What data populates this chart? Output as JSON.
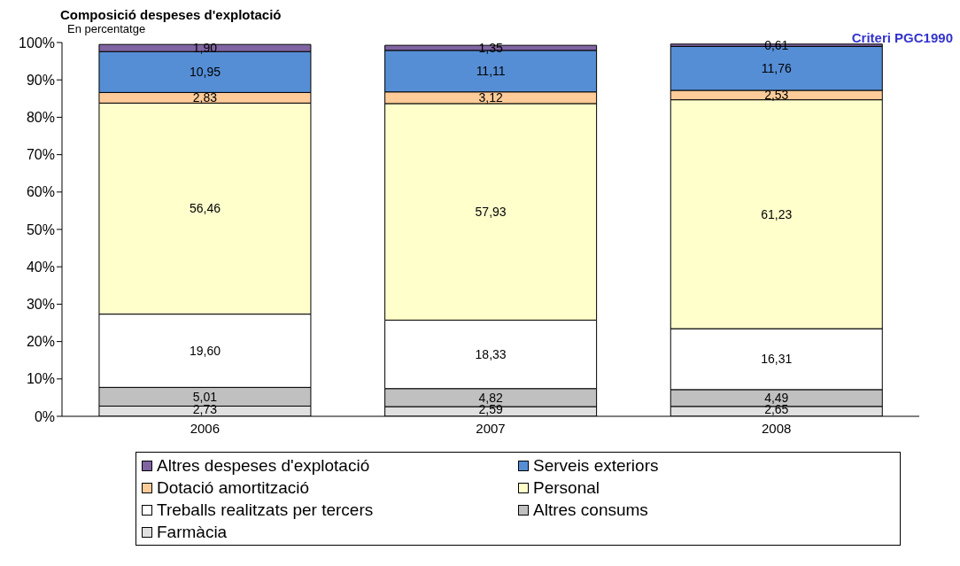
{
  "chart_data": {
    "type": "bar",
    "title": "Composició despeses d'explotació",
    "subtitle": "En percentatge",
    "annotations": [
      "Criteri PGC1990"
    ],
    "stacked": true,
    "categories": [
      "2006",
      "2007",
      "2008"
    ],
    "ylim": [
      0,
      100
    ],
    "yticks": [
      {
        "value": 0,
        "label": "0%"
      },
      {
        "value": 10,
        "label": "10%"
      },
      {
        "value": 20,
        "label": "20%"
      },
      {
        "value": 30,
        "label": "30%"
      },
      {
        "value": 40,
        "label": "40%"
      },
      {
        "value": 50,
        "label": "50%"
      },
      {
        "value": 60,
        "label": "60%"
      },
      {
        "value": 70,
        "label": "70%"
      },
      {
        "value": 80,
        "label": "80%"
      },
      {
        "value": 90,
        "label": "90%"
      },
      {
        "value": 100,
        "label": "100%"
      }
    ],
    "grid": false,
    "legend": "bottom",
    "series": [
      {
        "name": "Farmàcia",
        "color": "#e0e0e0",
        "values": [
          2.73,
          2.59,
          2.65
        ],
        "value_labels": [
          "2,73",
          "2,59",
          "2,65"
        ]
      },
      {
        "name": "Altres consums",
        "color": "#c0c0c0",
        "values": [
          5.01,
          4.82,
          4.49
        ],
        "value_labels": [
          "5,01",
          "4,82",
          "4,49"
        ]
      },
      {
        "name": "Treballs realitzats per tercers",
        "color": "#ffffff",
        "values": [
          19.6,
          18.33,
          16.31
        ],
        "value_labels": [
          "19,60",
          "18,33",
          "16,31"
        ]
      },
      {
        "name": "Personal",
        "color": "#ffffcc",
        "values": [
          56.46,
          57.93,
          61.23
        ],
        "value_labels": [
          "56,46",
          "57,93",
          "61,23"
        ]
      },
      {
        "name": "Dotació amortització",
        "color": "#ffcc99",
        "values": [
          2.83,
          3.12,
          2.53
        ],
        "value_labels": [
          "2,83",
          "3,12",
          "2,53"
        ]
      },
      {
        "name": "Serveis exteriors",
        "color": "#558ed5",
        "values": [
          10.95,
          11.11,
          11.76
        ],
        "value_labels": [
          "10,95",
          "11,11",
          "11,76"
        ]
      },
      {
        "name": "Altres despeses d'explotació",
        "color": "#8064a2",
        "values": [
          1.9,
          1.35,
          0.61
        ],
        "value_labels": [
          "1,90",
          "1,35",
          "0,61"
        ]
      }
    ]
  }
}
